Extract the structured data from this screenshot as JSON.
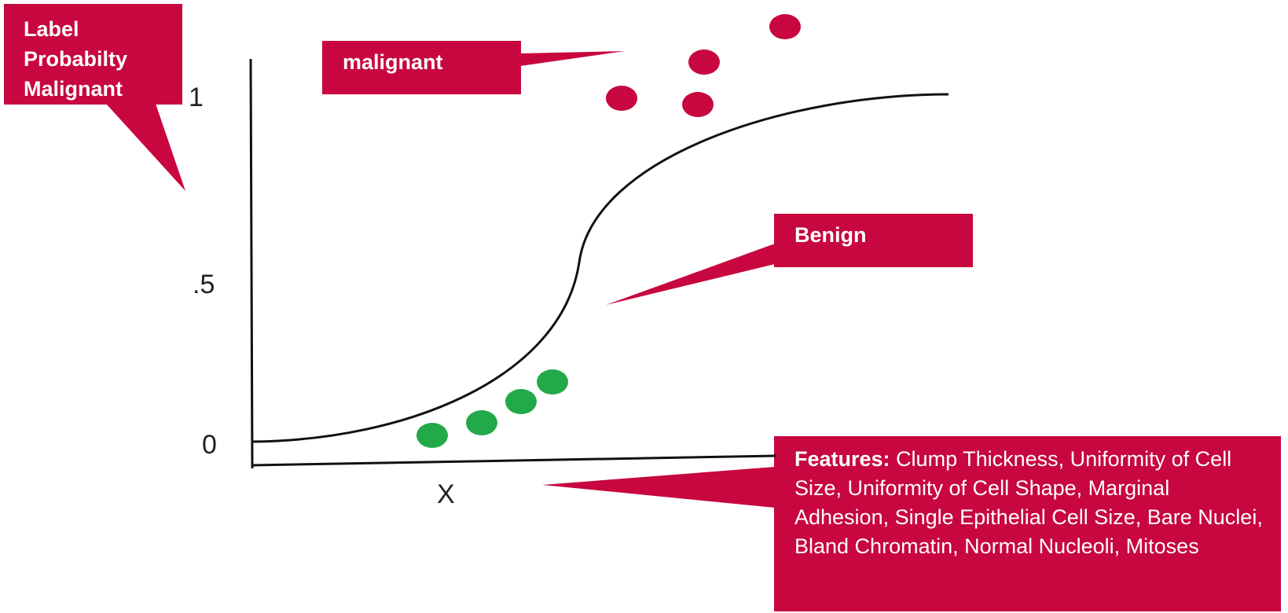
{
  "callouts": {
    "y_label": {
      "lines": [
        "Label",
        "Probabilty",
        "Malignant"
      ]
    },
    "malignant": "malignant",
    "benign": "Benign"
  },
  "axis": {
    "y_labels": [
      "1",
      ".5",
      "0"
    ],
    "x_label": "X"
  },
  "features": {
    "heading": "Features:",
    "text": "Clump Thickness, Uniformity of Cell Size, Uniformity of Cell Shape, Marginal Adhesion, Single Epithelial Cell Size, Bare Nuclei, Bland Chromatin, Normal Nucleoli, Mitoses"
  }
}
